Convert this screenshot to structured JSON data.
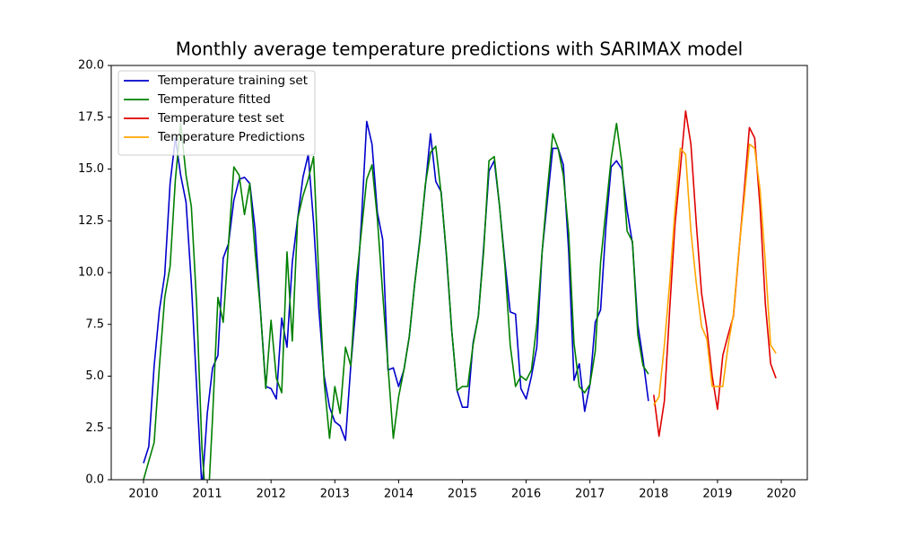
{
  "chart_data": {
    "type": "line",
    "title": "Monthly average temperature predictions with SARIMAX model",
    "xlim": [
      2009.494,
      2020.408
    ],
    "xticks": [
      2010,
      2011,
      2012,
      2013,
      2014,
      2015,
      2016,
      2017,
      2018,
      2019,
      2020
    ],
    "ylim": [
      0,
      20
    ],
    "yticks": [
      {
        "value": 0,
        "label": "0.0"
      },
      2.5,
      {
        "value": 5,
        "label": "5.0"
      },
      7.5,
      {
        "value": 10,
        "label": "10.0"
      },
      12.5,
      {
        "value": 15,
        "label": "15.0"
      },
      17.5,
      {
        "value": 20,
        "label": "20.0"
      }
    ],
    "legend": "upper left",
    "series": [
      {
        "name": "Temperature training set",
        "color": "#0000cc",
        "x": [
          2010,
          2010.083,
          2010.167,
          2010.25,
          2010.333,
          2010.417,
          2010.5,
          2010.583,
          2010.667,
          2010.75,
          2010.833,
          2010.917,
          2011,
          2011.083,
          2011.167,
          2011.25,
          2011.333,
          2011.417,
          2011.5,
          2011.583,
          2011.667,
          2011.75,
          2011.833,
          2011.917,
          2012,
          2012.083,
          2012.167,
          2012.25,
          2012.333,
          2012.417,
          2012.5,
          2012.583,
          2012.667,
          2012.75,
          2012.833,
          2012.917,
          2013,
          2013.083,
          2013.167,
          2013.25,
          2013.333,
          2013.417,
          2013.5,
          2013.583,
          2013.667,
          2013.75,
          2013.833,
          2013.917,
          2014,
          2014.083,
          2014.167,
          2014.25,
          2014.333,
          2014.417,
          2014.5,
          2014.583,
          2014.667,
          2014.75,
          2014.833,
          2014.917,
          2015,
          2015.083,
          2015.167,
          2015.25,
          2015.333,
          2015.417,
          2015.5,
          2015.583,
          2015.667,
          2015.75,
          2015.833,
          2015.917,
          2016,
          2016.083,
          2016.167,
          2016.25,
          2016.333,
          2016.417,
          2016.5,
          2016.583,
          2016.667,
          2016.75,
          2016.833,
          2016.917,
          2017,
          2017.083,
          2017.167,
          2017.25,
          2017.333,
          2017.417,
          2017.5,
          2017.583,
          2017.667,
          2017.75,
          2017.833,
          2017.917
        ],
        "values": [
          0.8,
          1.6,
          5.5,
          8.2,
          9.9,
          14.3,
          16.5,
          14.7,
          13.4,
          9.5,
          4.5,
          -0.5,
          3.2,
          5.4,
          6.0,
          10.7,
          11.4,
          13.5,
          14.5,
          14.6,
          14.3,
          12.1,
          8.2,
          4.5,
          4.4,
          3.9,
          7.8,
          6.4,
          10.5,
          12.6,
          14.6,
          15.7,
          12.4,
          8.2,
          5.0,
          3.5,
          2.8,
          2.6,
          1.9,
          5.5,
          8.4,
          12.5,
          17.3,
          16.2,
          12.9,
          11.6,
          5.3,
          5.4,
          4.5,
          5.3,
          6.9,
          9.4,
          11.6,
          14.1,
          16.7,
          14.4,
          13.9,
          10.8,
          7.2,
          4.3,
          3.5,
          3.5,
          6.6,
          7.9,
          11.2,
          14.9,
          15.4,
          13.2,
          10.5,
          8.1,
          8.0,
          4.4,
          3.9,
          5.0,
          6.4,
          11.0,
          13.5,
          16.0,
          16.0,
          15.2,
          11.0,
          4.8,
          5.6,
          3.3,
          4.6,
          7.6,
          8.2,
          12.2,
          15.1,
          15.4,
          15.0,
          13.0,
          11.4,
          7.5,
          5.8,
          3.8
        ]
      },
      {
        "name": "Temperature fitted",
        "color": "#008000",
        "x": [
          2010,
          2010.083,
          2010.167,
          2010.25,
          2010.333,
          2010.417,
          2010.5,
          2010.583,
          2010.667,
          2010.75,
          2010.833,
          2010.917,
          2011,
          2011.083,
          2011.167,
          2011.25,
          2011.333,
          2011.417,
          2011.5,
          2011.583,
          2011.667,
          2011.75,
          2011.833,
          2011.917,
          2012,
          2012.083,
          2012.167,
          2012.25,
          2012.333,
          2012.417,
          2012.5,
          2012.583,
          2012.667,
          2012.75,
          2012.833,
          2012.917,
          2013,
          2013.083,
          2013.167,
          2013.25,
          2013.333,
          2013.417,
          2013.5,
          2013.583,
          2013.667,
          2013.75,
          2013.833,
          2013.917,
          2014,
          2014.083,
          2014.167,
          2014.25,
          2014.333,
          2014.417,
          2014.5,
          2014.583,
          2014.667,
          2014.75,
          2014.833,
          2014.917,
          2015,
          2015.083,
          2015.167,
          2015.25,
          2015.333,
          2015.417,
          2015.5,
          2015.583,
          2015.667,
          2015.75,
          2015.833,
          2015.917,
          2016,
          2016.083,
          2016.167,
          2016.25,
          2016.333,
          2016.417,
          2016.5,
          2016.583,
          2016.667,
          2016.75,
          2016.833,
          2016.917,
          2017,
          2017.083,
          2017.167,
          2017.25,
          2017.333,
          2017.417,
          2017.5,
          2017.583,
          2017.667,
          2017.75,
          2017.833,
          2017.917
        ],
        "values": [
          0.0,
          0.9,
          1.8,
          5.5,
          8.8,
          10.3,
          14.5,
          17.2,
          14.7,
          13.2,
          8.5,
          1.5,
          -2.0,
          3.0,
          8.8,
          7.6,
          11.4,
          15.1,
          14.7,
          12.8,
          14.3,
          11.0,
          8.2,
          4.4,
          7.7,
          4.9,
          4.2,
          11.0,
          6.7,
          12.6,
          13.7,
          14.5,
          15.6,
          9.7,
          4.7,
          2.0,
          4.5,
          3.2,
          6.4,
          5.5,
          9.5,
          12.0,
          14.5,
          15.2,
          12.6,
          9.0,
          5.5,
          2.0,
          4.0,
          5.3,
          6.9,
          9.4,
          11.5,
          14.2,
          15.8,
          16.1,
          13.8,
          10.9,
          7.2,
          4.3,
          4.5,
          4.5,
          6.5,
          7.9,
          11.0,
          15.4,
          15.6,
          13.2,
          10.3,
          6.5,
          4.5,
          5.0,
          4.8,
          5.3,
          7.5,
          11.0,
          14.0,
          16.7,
          16.0,
          14.7,
          11.9,
          6.6,
          4.5,
          4.2,
          4.6,
          6.2,
          10.5,
          13.0,
          15.5,
          17.2,
          15.3,
          12.0,
          11.5,
          7.0,
          5.5,
          5.1
        ]
      },
      {
        "name": "Temperature test set",
        "color": "#e00000",
        "x": [
          2018,
          2018.083,
          2018.167,
          2018.25,
          2018.333,
          2018.417,
          2018.5,
          2018.583,
          2018.667,
          2018.75,
          2018.833,
          2018.917,
          2019,
          2019.083,
          2019.167,
          2019.25,
          2019.333,
          2019.417,
          2019.5,
          2019.583,
          2019.667,
          2019.75,
          2019.833,
          2019.917
        ],
        "values": [
          4.1,
          2.1,
          3.8,
          8.2,
          12.3,
          15.0,
          17.8,
          16.2,
          12.4,
          9.0,
          7.3,
          5.0,
          3.4,
          6.0,
          7.0,
          7.9,
          10.9,
          13.9,
          17.0,
          16.5,
          13.2,
          8.5,
          5.6,
          4.9
        ]
      },
      {
        "name": "Temperature Predictions",
        "color": "#ffa500",
        "x": [
          2018,
          2018.083,
          2018.167,
          2018.25,
          2018.333,
          2018.417,
          2018.5,
          2018.583,
          2018.667,
          2018.75,
          2018.833,
          2018.917,
          2019,
          2019.083,
          2019.167,
          2019.25,
          2019.333,
          2019.417,
          2019.5,
          2019.583,
          2019.667,
          2019.75,
          2019.833,
          2019.917
        ],
        "values": [
          3.6,
          4.0,
          6.5,
          9.5,
          13.0,
          16.0,
          15.7,
          12.0,
          9.5,
          7.4,
          6.8,
          4.5,
          4.5,
          4.5,
          6.5,
          8.0,
          11.0,
          13.5,
          16.2,
          16.0,
          14.0,
          10.5,
          6.5,
          6.1
        ]
      }
    ]
  }
}
